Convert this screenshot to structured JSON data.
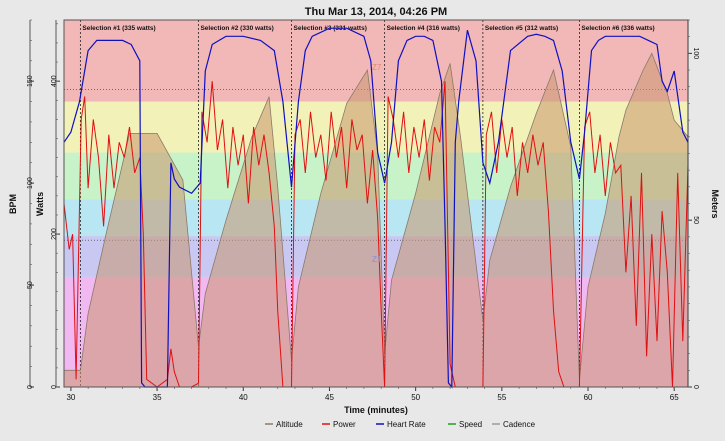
{
  "chart_data": {
    "type": "line",
    "title": "Thu Mar 13, 2014, 04:26 PM",
    "xlabel": "Time (minutes)",
    "ylabel_left_outer": "BPM",
    "ylabel_left_inner": "Watts",
    "ylabel_right": "Meters",
    "xlim": [
      29.6,
      65.8
    ],
    "x_ticks": [
      "30",
      "35",
      "40",
      "45",
      "50",
      "55",
      "60",
      "65"
    ],
    "bpm_axis": {
      "range": [
        0,
        180
      ],
      "ticks": [
        "0",
        "50",
        "100",
        "150"
      ]
    },
    "watts_axis": {
      "range": [
        0,
        480
      ],
      "ticks": [
        "0",
        "200",
        "400"
      ]
    },
    "meters_axis": {
      "range": [
        0,
        110
      ],
      "ticks": [
        "0",
        "50",
        "100"
      ]
    },
    "zones": [
      {
        "from": 0,
        "to": 54,
        "color": "#f2b8f2"
      },
      {
        "from": 54,
        "to": 74,
        "color": "#c8c8f2"
      },
      {
        "from": 74,
        "to": 92,
        "color": "#b8e6f2"
      },
      {
        "from": 92,
        "to": 115,
        "color": "#c8f2c8"
      },
      {
        "from": 115,
        "to": 140,
        "color": "#f2f2b8"
      },
      {
        "from": 140,
        "to": 180,
        "color": "#f2b8b8"
      }
    ],
    "reference_lines_bpm": [
      72,
      146
    ],
    "selections": [
      {
        "label": "Selection #1 (335 watts)",
        "start": 30.55,
        "end": 37.4
      },
      {
        "label": "Selection #2 (330 watts)",
        "start": 37.4,
        "end": 42.8
      },
      {
        "label": "Selection #3 (331 watts)",
        "start": 42.8,
        "end": 48.2
      },
      {
        "label": "Selection #4 (316 watts)",
        "start": 48.2,
        "end": 53.9
      },
      {
        "label": "Selection #5 (312 watts)",
        "start": 53.9,
        "end": 59.5
      },
      {
        "label": "Selection #6 (336 watts)",
        "start": 59.5,
        "end": 65.8
      }
    ],
    "series": [
      {
        "name": "Altitude",
        "unit": "meters",
        "color": "#8a7a6a",
        "x": [
          29.6,
          30.0,
          30.55,
          31.0,
          32.0,
          33.0,
          33.4,
          34.5,
          35.0,
          36.5,
          37.4,
          37.8,
          39.0,
          40.5,
          41.5,
          42.0,
          42.8,
          43.2,
          44.5,
          46.0,
          47.2,
          47.8,
          48.2,
          48.6,
          50.0,
          51.4,
          52.0,
          52.6,
          53.9,
          54.3,
          55.5,
          57.0,
          58.0,
          59.0,
          59.5,
          60.0,
          61.0,
          61.8,
          62.2,
          63.2,
          63.7,
          64.6,
          65.0,
          65.8
        ],
        "values": [
          5,
          5,
          5,
          22,
          45,
          67,
          76,
          76,
          76,
          62,
          12,
          28,
          50,
          75,
          87,
          60,
          8,
          30,
          58,
          85,
          95,
          70,
          10,
          32,
          58,
          88,
          97,
          75,
          20,
          38,
          60,
          82,
          95,
          72,
          2,
          30,
          52,
          75,
          83,
          95,
          100,
          88,
          80,
          75
        ]
      },
      {
        "name": "Power",
        "unit": "watts",
        "color": "#e01010",
        "x": [
          29.6,
          29.9,
          30.1,
          30.3,
          30.6,
          30.8,
          31.0,
          31.3,
          31.6,
          31.9,
          32.2,
          32.5,
          32.8,
          33.1,
          33.4,
          33.7,
          34.0,
          34.2,
          34.4,
          35.0,
          35.6,
          35.8,
          36.0,
          36.3,
          36.6,
          37.0,
          37.4,
          37.6,
          37.9,
          38.2,
          38.5,
          38.8,
          39.1,
          39.4,
          39.7,
          40.0,
          40.3,
          40.6,
          40.9,
          41.2,
          41.5,
          41.8,
          42.0,
          42.3,
          42.6,
          42.8,
          43.0,
          43.3,
          43.6,
          43.9,
          44.2,
          44.5,
          44.8,
          45.1,
          45.4,
          45.7,
          46.0,
          46.3,
          46.6,
          46.9,
          47.2,
          47.5,
          47.8,
          48.0,
          48.2,
          48.4,
          48.7,
          49.0,
          49.3,
          49.6,
          49.9,
          50.2,
          50.5,
          50.8,
          51.1,
          51.4,
          51.7,
          52.0,
          52.3,
          52.6,
          52.9,
          53.2,
          53.5,
          53.9,
          54.1,
          54.4,
          54.7,
          55.0,
          55.3,
          55.6,
          55.9,
          56.2,
          56.5,
          56.8,
          57.1,
          57.4,
          57.7,
          58.0,
          58.3,
          58.6,
          59.0,
          59.3,
          59.5,
          59.8,
          60.1,
          60.4,
          60.7,
          61.0,
          61.3,
          61.6,
          61.9,
          62.2,
          62.5,
          62.8,
          63.1,
          63.4,
          63.7,
          64.0,
          64.3,
          64.6,
          64.9,
          65.2,
          65.5,
          65.8
        ],
        "values": [
          240,
          180,
          200,
          10,
          350,
          380,
          260,
          350,
          300,
          210,
          330,
          260,
          320,
          300,
          340,
          280,
          300,
          200,
          10,
          0,
          10,
          50,
          20,
          0,
          0,
          0,
          5,
          360,
          320,
          400,
          310,
          350,
          260,
          340,
          290,
          330,
          240,
          340,
          290,
          330,
          280,
          210,
          100,
          0,
          0,
          0,
          330,
          350,
          280,
          360,
          300,
          330,
          270,
          360,
          300,
          340,
          260,
          350,
          310,
          330,
          240,
          310,
          220,
          100,
          0,
          380,
          350,
          300,
          360,
          280,
          340,
          300,
          350,
          270,
          340,
          320,
          400,
          30,
          0,
          0,
          0,
          0,
          0,
          0,
          330,
          360,
          280,
          350,
          300,
          340,
          250,
          320,
          280,
          330,
          290,
          320,
          230,
          100,
          20,
          0,
          0,
          0,
          0,
          340,
          360,
          280,
          330,
          250,
          320,
          280,
          290,
          150,
          250,
          80,
          280,
          40,
          200,
          60,
          230,
          150,
          0,
          280,
          60,
          290
        ]
      },
      {
        "name": "Heart Rate",
        "unit": "bpm",
        "color": "#1010c0",
        "x": [
          29.6,
          30.0,
          30.5,
          31.0,
          31.5,
          32.0,
          32.5,
          33.0,
          33.5,
          34.0,
          34.1,
          34.3,
          35.6,
          35.8,
          36.0,
          36.3,
          37.0,
          37.5,
          37.8,
          38.2,
          38.6,
          39.0,
          40.0,
          41.0,
          41.8,
          42.3,
          42.8,
          43.2,
          43.6,
          44.0,
          45.0,
          46.0,
          47.0,
          47.4,
          47.8,
          48.2,
          48.6,
          49.0,
          49.5,
          50.0,
          50.5,
          51.0,
          51.5,
          51.7,
          51.9,
          52.1,
          52.3,
          52.5,
          53.0,
          53.5,
          53.9,
          54.3,
          54.8,
          55.5,
          56.5,
          57.0,
          57.5,
          58.0,
          58.5,
          59.0,
          59.5,
          59.8,
          60.2,
          60.6,
          61.0,
          61.5,
          62.0,
          62.5,
          63.0,
          63.5,
          64.0,
          64.3,
          64.6,
          65.0,
          65.5,
          65.8
        ],
        "values": [
          120,
          125,
          140,
          165,
          170,
          170,
          170,
          170,
          168,
          160,
          2,
          0,
          0,
          110,
          102,
          98,
          95,
          100,
          155,
          168,
          170,
          172,
          172,
          170,
          165,
          140,
          98,
          140,
          165,
          172,
          176,
          176,
          172,
          160,
          115,
          100,
          120,
          160,
          170,
          172,
          172,
          170,
          150,
          80,
          2,
          0,
          120,
          140,
          175,
          160,
          110,
          100,
          120,
          165,
          172,
          173,
          172,
          170,
          155,
          120,
          102,
          125,
          165,
          170,
          172,
          172,
          172,
          172,
          172,
          170,
          168,
          150,
          145,
          155,
          125,
          120
        ]
      }
    ],
    "legend": [
      "Altitude",
      "Power",
      "Heart Rate",
      "Speed",
      "Cadence"
    ],
    "legend_colors": [
      "#8a7a6a",
      "#e01010",
      "#1010c0",
      "#20a020",
      "#9a9a9a"
    ],
    "annotations": [
      "Z7",
      "Z1"
    ]
  }
}
